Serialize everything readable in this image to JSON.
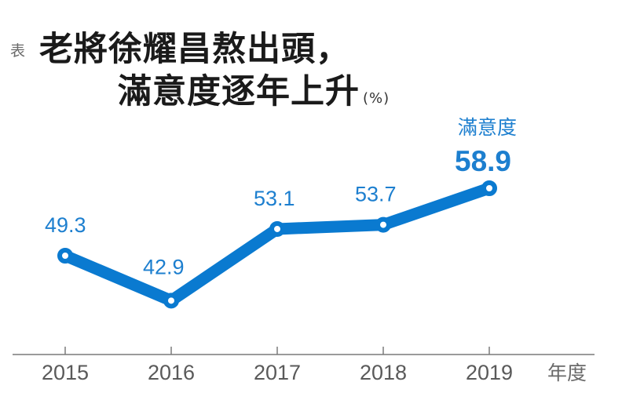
{
  "header": {
    "prefix": "表",
    "title_line1": "老將徐耀昌熬出頭，",
    "title_line2": "滿意度逐年上升",
    "unit": "(%)"
  },
  "highlight": {
    "label": "滿意度",
    "value": "58.9"
  },
  "axis": {
    "x_unit": "年度"
  },
  "colors": {
    "line": "#0a7ad0",
    "label": "#1d7fcf",
    "axis": "#9a9a9a",
    "tick_text": "#5a5a5a",
    "title": "#1a1a1a"
  },
  "chart_data": {
    "type": "line",
    "title": "老將徐耀昌熬出頭，滿意度逐年上升",
    "unit": "%",
    "xlabel": "年度",
    "ylabel": "滿意度",
    "categories": [
      "2015",
      "2016",
      "2017",
      "2018",
      "2019"
    ],
    "series": [
      {
        "name": "滿意度",
        "values": [
          49.3,
          42.9,
          53.1,
          53.7,
          58.9
        ]
      }
    ],
    "data_labels": [
      "49.3",
      "42.9",
      "53.1",
      "53.7",
      "58.9"
    ],
    "grid": false,
    "legend": "none",
    "ylim": [
      35,
      62
    ]
  }
}
